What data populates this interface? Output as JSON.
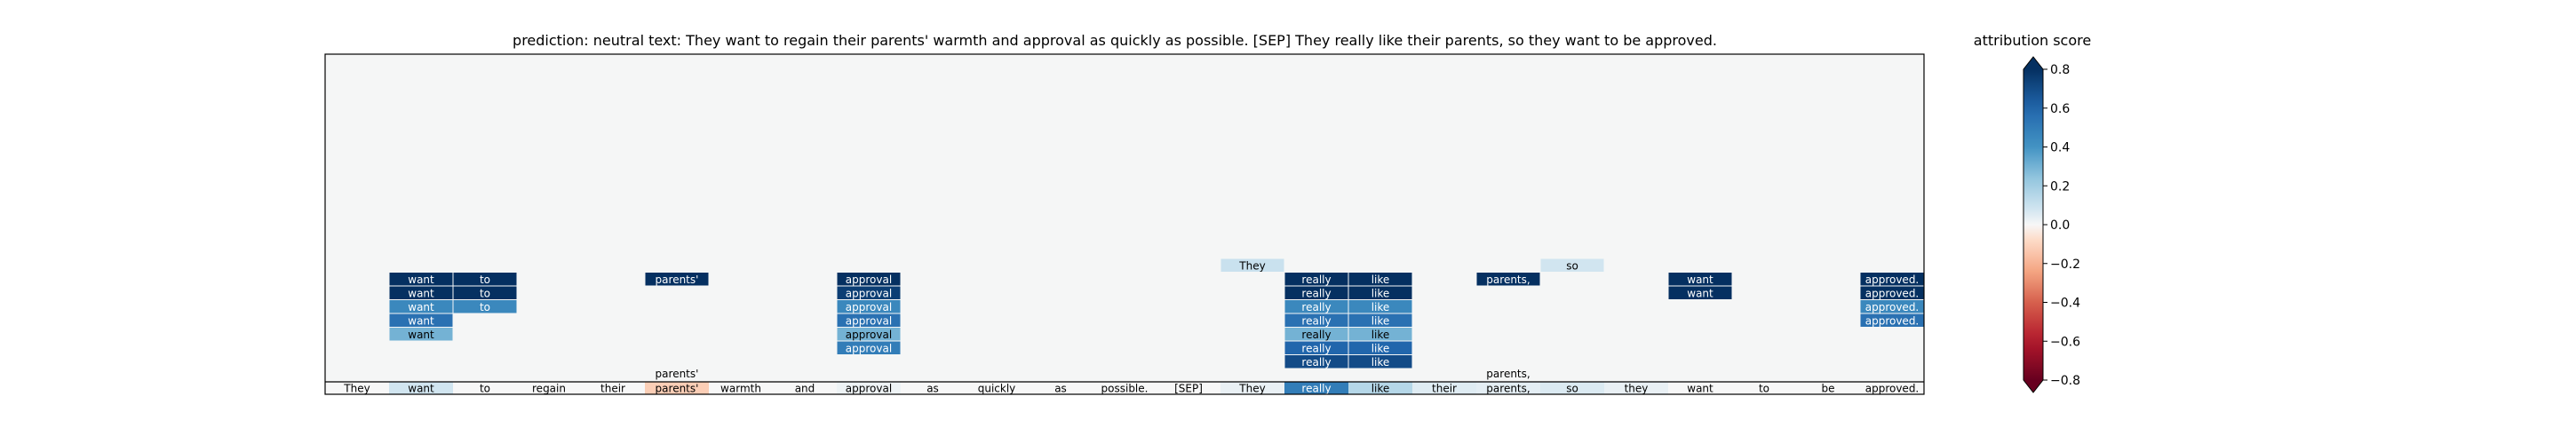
{
  "chart_data": {
    "type": "heatmap",
    "title": "prediction:  neutral     text:  They want to regain their parents' warmth and approval as quickly as possible. [SEP] They really like their parents, so they want to be approved.",
    "tokens": [
      "They",
      "want",
      "to",
      "regain",
      "their",
      "parents'",
      "warmth",
      "and",
      "approval",
      "as",
      "quickly",
      "as",
      "possible.",
      "[SEP]",
      "They",
      "really",
      "like",
      "their",
      "parents,",
      "so",
      "they",
      "want",
      "to",
      "be",
      "approved."
    ],
    "base_scores": [
      0.0,
      0.08,
      0.0,
      0.0,
      0.0,
      -0.12,
      0.0,
      0.0,
      0.02,
      0.0,
      0.0,
      0.0,
      0.0,
      0.0,
      0.03,
      0.5,
      0.15,
      0.05,
      0.04,
      0.06,
      0.03,
      0.0,
      0.0,
      0.0,
      0.0
    ],
    "base_annotations": [
      {
        "position": 5,
        "text": "parents'"
      },
      {
        "position": 18,
        "text": "parents,"
      }
    ],
    "layers": [
      [
        {
          "position": 14,
          "text": "They",
          "score": 0.1
        },
        {
          "position": 19,
          "text": "so",
          "score": 0.08
        }
      ],
      [
        {
          "position": 1,
          "text": "want",
          "score": 0.85
        },
        {
          "position": 2,
          "text": "to",
          "score": 0.85
        },
        {
          "position": 5,
          "text": "parents'",
          "score": 0.85
        },
        {
          "position": 8,
          "text": "approval",
          "score": 0.85
        },
        {
          "position": 15,
          "text": "really",
          "score": 0.85
        },
        {
          "position": 16,
          "text": "like",
          "score": 0.85
        },
        {
          "position": 18,
          "text": "parents,",
          "score": 0.85
        },
        {
          "position": 21,
          "text": "want",
          "score": 0.85
        },
        {
          "position": 24,
          "text": "approved.",
          "score": 0.85
        }
      ],
      [
        {
          "position": 1,
          "text": "want",
          "score": 0.85
        },
        {
          "position": 2,
          "text": "to",
          "score": 0.85
        },
        {
          "position": 8,
          "text": "approval",
          "score": 0.75
        },
        {
          "position": 15,
          "text": "really",
          "score": 0.85
        },
        {
          "position": 16,
          "text": "like",
          "score": 0.85
        },
        {
          "position": 21,
          "text": "want",
          "score": 0.85
        },
        {
          "position": 24,
          "text": "approved.",
          "score": 0.85
        }
      ],
      [
        {
          "position": 1,
          "text": "want",
          "score": 0.45
        },
        {
          "position": 2,
          "text": "to",
          "score": 0.45
        },
        {
          "position": 8,
          "text": "approval",
          "score": 0.45
        },
        {
          "position": 15,
          "text": "really",
          "score": 0.45
        },
        {
          "position": 16,
          "text": "like",
          "score": 0.45
        },
        {
          "position": 24,
          "text": "approved.",
          "score": 0.45
        }
      ],
      [
        {
          "position": 1,
          "text": "want",
          "score": 0.55
        },
        {
          "position": 8,
          "text": "approval",
          "score": 0.55
        },
        {
          "position": 15,
          "text": "really",
          "score": 0.55
        },
        {
          "position": 16,
          "text": "like",
          "score": 0.55
        },
        {
          "position": 24,
          "text": "approved.",
          "score": 0.55
        }
      ],
      [
        {
          "position": 1,
          "text": "want",
          "score": 0.3
        },
        {
          "position": 8,
          "text": "approval",
          "score": 0.3
        },
        {
          "position": 15,
          "text": "really",
          "score": 0.3
        },
        {
          "position": 16,
          "text": "like",
          "score": 0.3
        }
      ],
      [
        {
          "position": 8,
          "text": "approval",
          "score": 0.5
        },
        {
          "position": 15,
          "text": "really",
          "score": 0.6
        },
        {
          "position": 16,
          "text": "like",
          "score": 0.6
        }
      ],
      [
        {
          "position": 15,
          "text": "really",
          "score": 0.7
        },
        {
          "position": 16,
          "text": "like",
          "score": 0.7
        }
      ]
    ],
    "colorbar": {
      "label": "attribution score",
      "range": [
        -0.8,
        0.8
      ],
      "ticks": [
        0.8,
        0.6,
        0.4,
        0.2,
        0.0,
        -0.2,
        -0.4,
        -0.6,
        -0.8
      ],
      "tick_labels": [
        "0.8",
        "0.6",
        "0.4",
        "0.2",
        "0.0",
        "−0.2",
        "−0.4",
        "−0.6",
        "−0.8"
      ],
      "colormap": "RdBu"
    }
  }
}
